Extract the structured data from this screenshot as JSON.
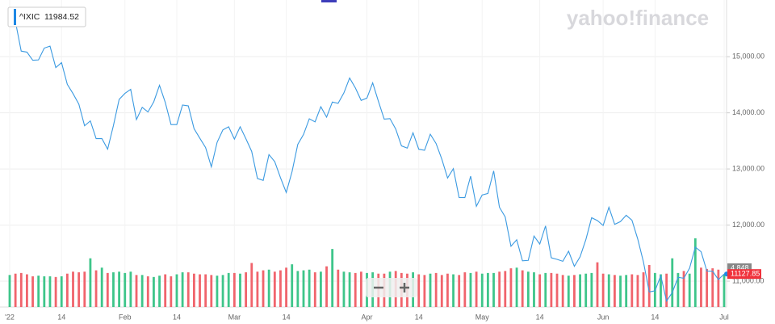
{
  "chart_data": {
    "type": "line",
    "legend": {
      "symbol": "^IXIC",
      "value": "11984.52"
    },
    "watermark": "yahoo!finance",
    "categories": [
      "'22",
      null,
      null,
      null,
      null,
      null,
      null,
      null,
      null,
      "14",
      null,
      null,
      null,
      null,
      null,
      null,
      null,
      null,
      null,
      null,
      "Feb",
      null,
      null,
      null,
      null,
      null,
      null,
      null,
      null,
      "14",
      null,
      null,
      null,
      null,
      null,
      null,
      null,
      null,
      null,
      "Mar",
      null,
      null,
      null,
      null,
      null,
      null,
      null,
      null,
      "14",
      null,
      null,
      null,
      null,
      null,
      null,
      null,
      null,
      null,
      null,
      null,
      null,
      null,
      "Apr",
      null,
      null,
      null,
      null,
      null,
      null,
      null,
      null,
      "14",
      null,
      null,
      null,
      null,
      null,
      null,
      null,
      null,
      null,
      null,
      "May",
      null,
      null,
      null,
      null,
      null,
      null,
      null,
      null,
      null,
      "14",
      null,
      null,
      null,
      null,
      null,
      null,
      null,
      null,
      null,
      null,
      "Jun",
      null,
      null,
      null,
      null,
      null,
      null,
      null,
      null,
      "14",
      null,
      null,
      null,
      null,
      null,
      null,
      null,
      null,
      null,
      null,
      null,
      "Jul"
    ],
    "series": [
      {
        "name": "^IXIC",
        "color": "#3b9ae1",
        "values": [
          15833,
          15623,
          15100,
          15081,
          14936,
          14943,
          15153,
          15188,
          14806,
          14894,
          14507,
          14341,
          14155,
          13769,
          13856,
          13540,
          13542,
          13353,
          13771,
          14240,
          14346,
          14418,
          13879,
          14098,
          14015,
          14195,
          14491,
          14186,
          13791,
          13791,
          14139,
          14124,
          13717,
          13548,
          13381,
          13037,
          13474,
          13695,
          13751,
          13532,
          13752,
          13538,
          13313,
          12830,
          12796,
          13256,
          13130,
          12844,
          12581,
          12949,
          13437,
          13615,
          13894,
          13839,
          14109,
          13923,
          14192,
          14169,
          14354,
          14620,
          14443,
          14221,
          14262,
          14533,
          14204,
          13888,
          13897,
          13711,
          13411,
          13372,
          13644,
          13351,
          13332,
          13619,
          13454,
          13175,
          12839,
          13005,
          12491,
          12489,
          12872,
          12335,
          12536,
          12564,
          12965,
          12318,
          12145,
          11623,
          11738,
          11364,
          11371,
          11805,
          11663,
          11985,
          11418,
          11389,
          11355,
          11535,
          11265,
          11435,
          11741,
          12131,
          12081,
          11994,
          12317,
          12013,
          12062,
          12175,
          12086,
          11754,
          11340,
          10809,
          10829,
          11099,
          10646,
          10798,
          11069,
          11053,
          11232,
          11608,
          11525,
          11182,
          11178,
          11029,
          11127.85
        ]
      },
      {
        "name": "Volume",
        "axis": "y2",
        "up_color": "#3ec58a",
        "down_color": "#f0646c",
        "values": [
          4.8,
          5.0,
          5.1,
          4.9,
          4.6,
          4.7,
          4.6,
          4.6,
          4.5,
          4.6,
          5.0,
          5.3,
          5.2,
          5.3,
          7.3,
          5.5,
          5.9,
          5.1,
          5.2,
          5.3,
          5.1,
          5.3,
          4.8,
          4.8,
          4.6,
          4.5,
          4.7,
          4.9,
          4.6,
          4.9,
          5.2,
          5.2,
          5.0,
          4.9,
          4.9,
          4.8,
          4.7,
          4.8,
          5.1,
          5.1,
          5.0,
          5.2,
          6.6,
          5.3,
          5.5,
          5.6,
          5.3,
          5.5,
          5.9,
          6.4,
          5.4,
          5.5,
          5.6,
          5.2,
          5.3,
          6.1,
          8.7,
          5.6,
          5.3,
          5.2,
          5.1,
          5.3,
          5.1,
          5.2,
          5.0,
          5.0,
          5.3,
          5.4,
          5.1,
          5.0,
          5.2,
          4.9,
          4.8,
          5.0,
          5.1,
          4.8,
          5.0,
          4.9,
          4.8,
          5.2,
          5.1,
          5.3,
          5.0,
          5.1,
          5.1,
          5.3,
          5.4,
          5.8,
          5.9,
          5.5,
          5.3,
          5.2,
          4.9,
          5.1,
          5.1,
          5.0,
          4.8,
          4.7,
          4.8,
          4.9,
          5.0,
          5.1,
          6.7,
          5.0,
          4.9,
          4.8,
          4.7,
          4.8,
          4.9,
          4.8,
          5.2,
          6.3,
          5.1,
          4.9,
          5.0,
          7.3,
          5.1,
          5.4,
          5.0,
          10.3,
          5.9,
          5.7,
          5.8,
          5.6,
          4.848
        ]
      }
    ],
    "ylim": [
      10540,
      16010
    ],
    "yticks": [
      {
        "value": 11000,
        "label": "11,000.00"
      },
      {
        "value": 12000,
        "label": "12,000.00"
      },
      {
        "value": 13000,
        "label": "13,000.00"
      },
      {
        "value": 14000,
        "label": "14,000.00"
      },
      {
        "value": 15000,
        "label": "15,000.00"
      }
    ],
    "y2lim": [
      0,
      46
    ],
    "grid": true
  }
}
